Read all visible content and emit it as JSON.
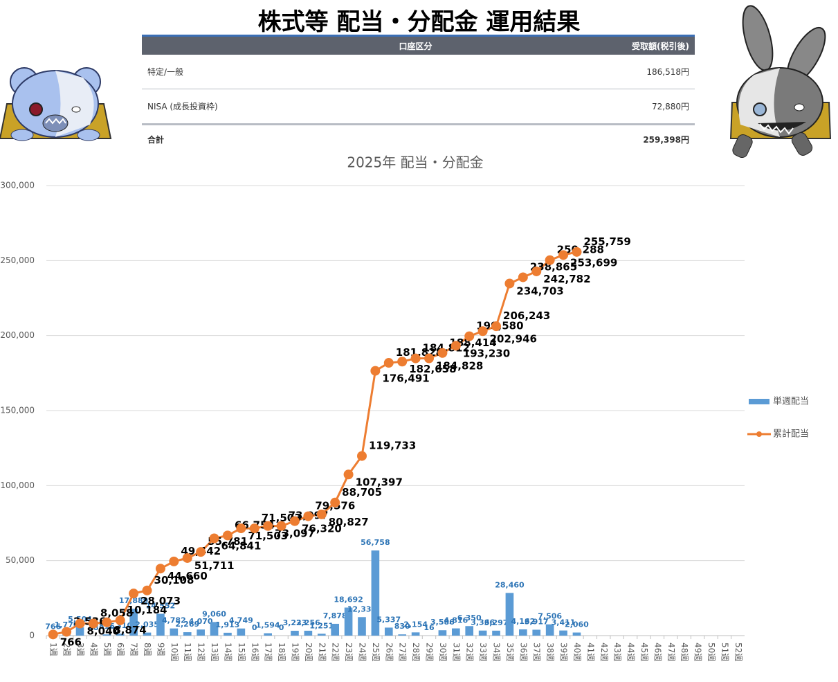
{
  "header": {
    "title": "株式等 配当・分配金 運用結果"
  },
  "table": {
    "columns": [
      "口座区分",
      "受取額(税引後)"
    ],
    "rows": [
      [
        "特定/一般",
        "186,518円"
      ],
      [
        "NISA (成長投資枠)",
        "72,880円"
      ],
      [
        "合計",
        "259,398円"
      ]
    ]
  },
  "chart_data": {
    "type": "combo",
    "title": "2025年 配当・分配金",
    "categories": [
      "1週",
      "2週",
      "3週",
      "4週",
      "5週",
      "6週",
      "7週",
      "8週",
      "9週",
      "10週",
      "11週",
      "12週",
      "13週",
      "14週",
      "15週",
      "16週",
      "17週",
      "18週",
      "19週",
      "20週",
      "21週",
      "22週",
      "23週",
      "24週",
      "25週",
      "26週",
      "27週",
      "28週",
      "29週",
      "30週",
      "31週",
      "32週",
      "33週",
      "34週",
      "35週",
      "36週",
      "37週",
      "38週",
      "39週",
      "40週",
      "41週",
      "42週",
      "43週",
      "44週",
      "45週",
      "46週",
      "47週",
      "48週",
      "49週",
      "50週",
      "51週",
      "52週"
    ],
    "series": [
      {
        "name": "単週配当",
        "kind": "bar",
        "color": "#5b9bd5",
        "values": [
          766,
          1770,
          5504,
          18,
          816,
          1310,
          17889,
          2035,
          14552,
          4782,
          2269,
          4070,
          9060,
          1913,
          4749,
          0,
          1594,
          0,
          3223,
          3256,
          1251,
          7878,
          18692,
          12336,
          56758,
          5337,
          830,
          2154,
          16,
          3586,
          4816,
          6350,
          3366,
          3297,
          28460,
          4162,
          3917,
          7506,
          3411,
          2060,
          null,
          null,
          null,
          null,
          null,
          null,
          null,
          null,
          null,
          null,
          null,
          null
        ],
        "value_labels": [
          "766",
          "1,770",
          "5,504",
          "18",
          "816",
          "1,310",
          "17,889",
          "2,035",
          "14,552",
          "4,782",
          "2,269",
          "4,070",
          "9,060",
          "1,913",
          "4,749",
          "0",
          "1,594",
          "0",
          "3,223",
          "3,256",
          "1,251",
          "7,878",
          "18,692",
          "12,336",
          "56,758",
          "5,337",
          "830",
          "2,154",
          "16",
          "3,586",
          "4,816",
          "6,350",
          "3,366",
          "3,297",
          "28,460",
          "4,162",
          "3,917",
          "7,506",
          "3,411",
          "2,060",
          null,
          null,
          null,
          null,
          null,
          null,
          null,
          null,
          null,
          null,
          null,
          null
        ]
      },
      {
        "name": "累計配当",
        "kind": "line",
        "color": "#ed7d31",
        "values": [
          766,
          2536,
          8040,
          8058,
          8874,
          10184,
          28073,
          30108,
          44660,
          49442,
          51711,
          55781,
          64841,
          66754,
          71503,
          71503,
          73097,
          73097,
          76320,
          79576,
          80827,
          88705,
          107397,
          119733,
          176491,
          181828,
          182658,
          184812,
          184828,
          188414,
          193230,
          199580,
          202946,
          206243,
          234703,
          238865,
          242782,
          250288,
          253699,
          255759,
          null,
          null,
          null,
          null,
          null,
          null,
          null,
          null,
          null,
          null,
          null,
          null
        ],
        "value_labels": [
          "766",
          "2,536",
          "8,040",
          "8,058",
          "8,874",
          "10,184",
          "28,073",
          "30,108",
          "44,660",
          "49,442",
          "51,711",
          "55,781",
          "64,841",
          "66,754",
          "71,503",
          "71,503",
          "73,097",
          "73,097",
          "76,320",
          "79,576",
          "80,827",
          "88,705",
          "107,397",
          "119,733",
          "176,491",
          "181,828",
          "182,658",
          "184,812",
          "184,828",
          "188,414",
          "193,230",
          "199,580",
          "202,946",
          "206,243",
          "234,703",
          "238,865",
          "242,782",
          "250,288",
          "253,699",
          "255,759",
          null,
          null,
          null,
          null,
          null,
          null,
          null,
          null,
          null,
          null,
          null,
          null
        ]
      }
    ],
    "ylim": [
      0,
      300000
    ],
    "yticks": [
      0,
      {
        "value": 50000,
        "label": "50,000"
      },
      {
        "value": 100000,
        "label": "100,000"
      },
      {
        "value": 150000,
        "label": "150,000"
      },
      {
        "value": 200000,
        "label": "200,000"
      },
      {
        "value": 250000,
        "label": "250,000"
      },
      {
        "value": 300000,
        "label": "300,000"
      }
    ],
    "grid": true,
    "legend": "right"
  }
}
